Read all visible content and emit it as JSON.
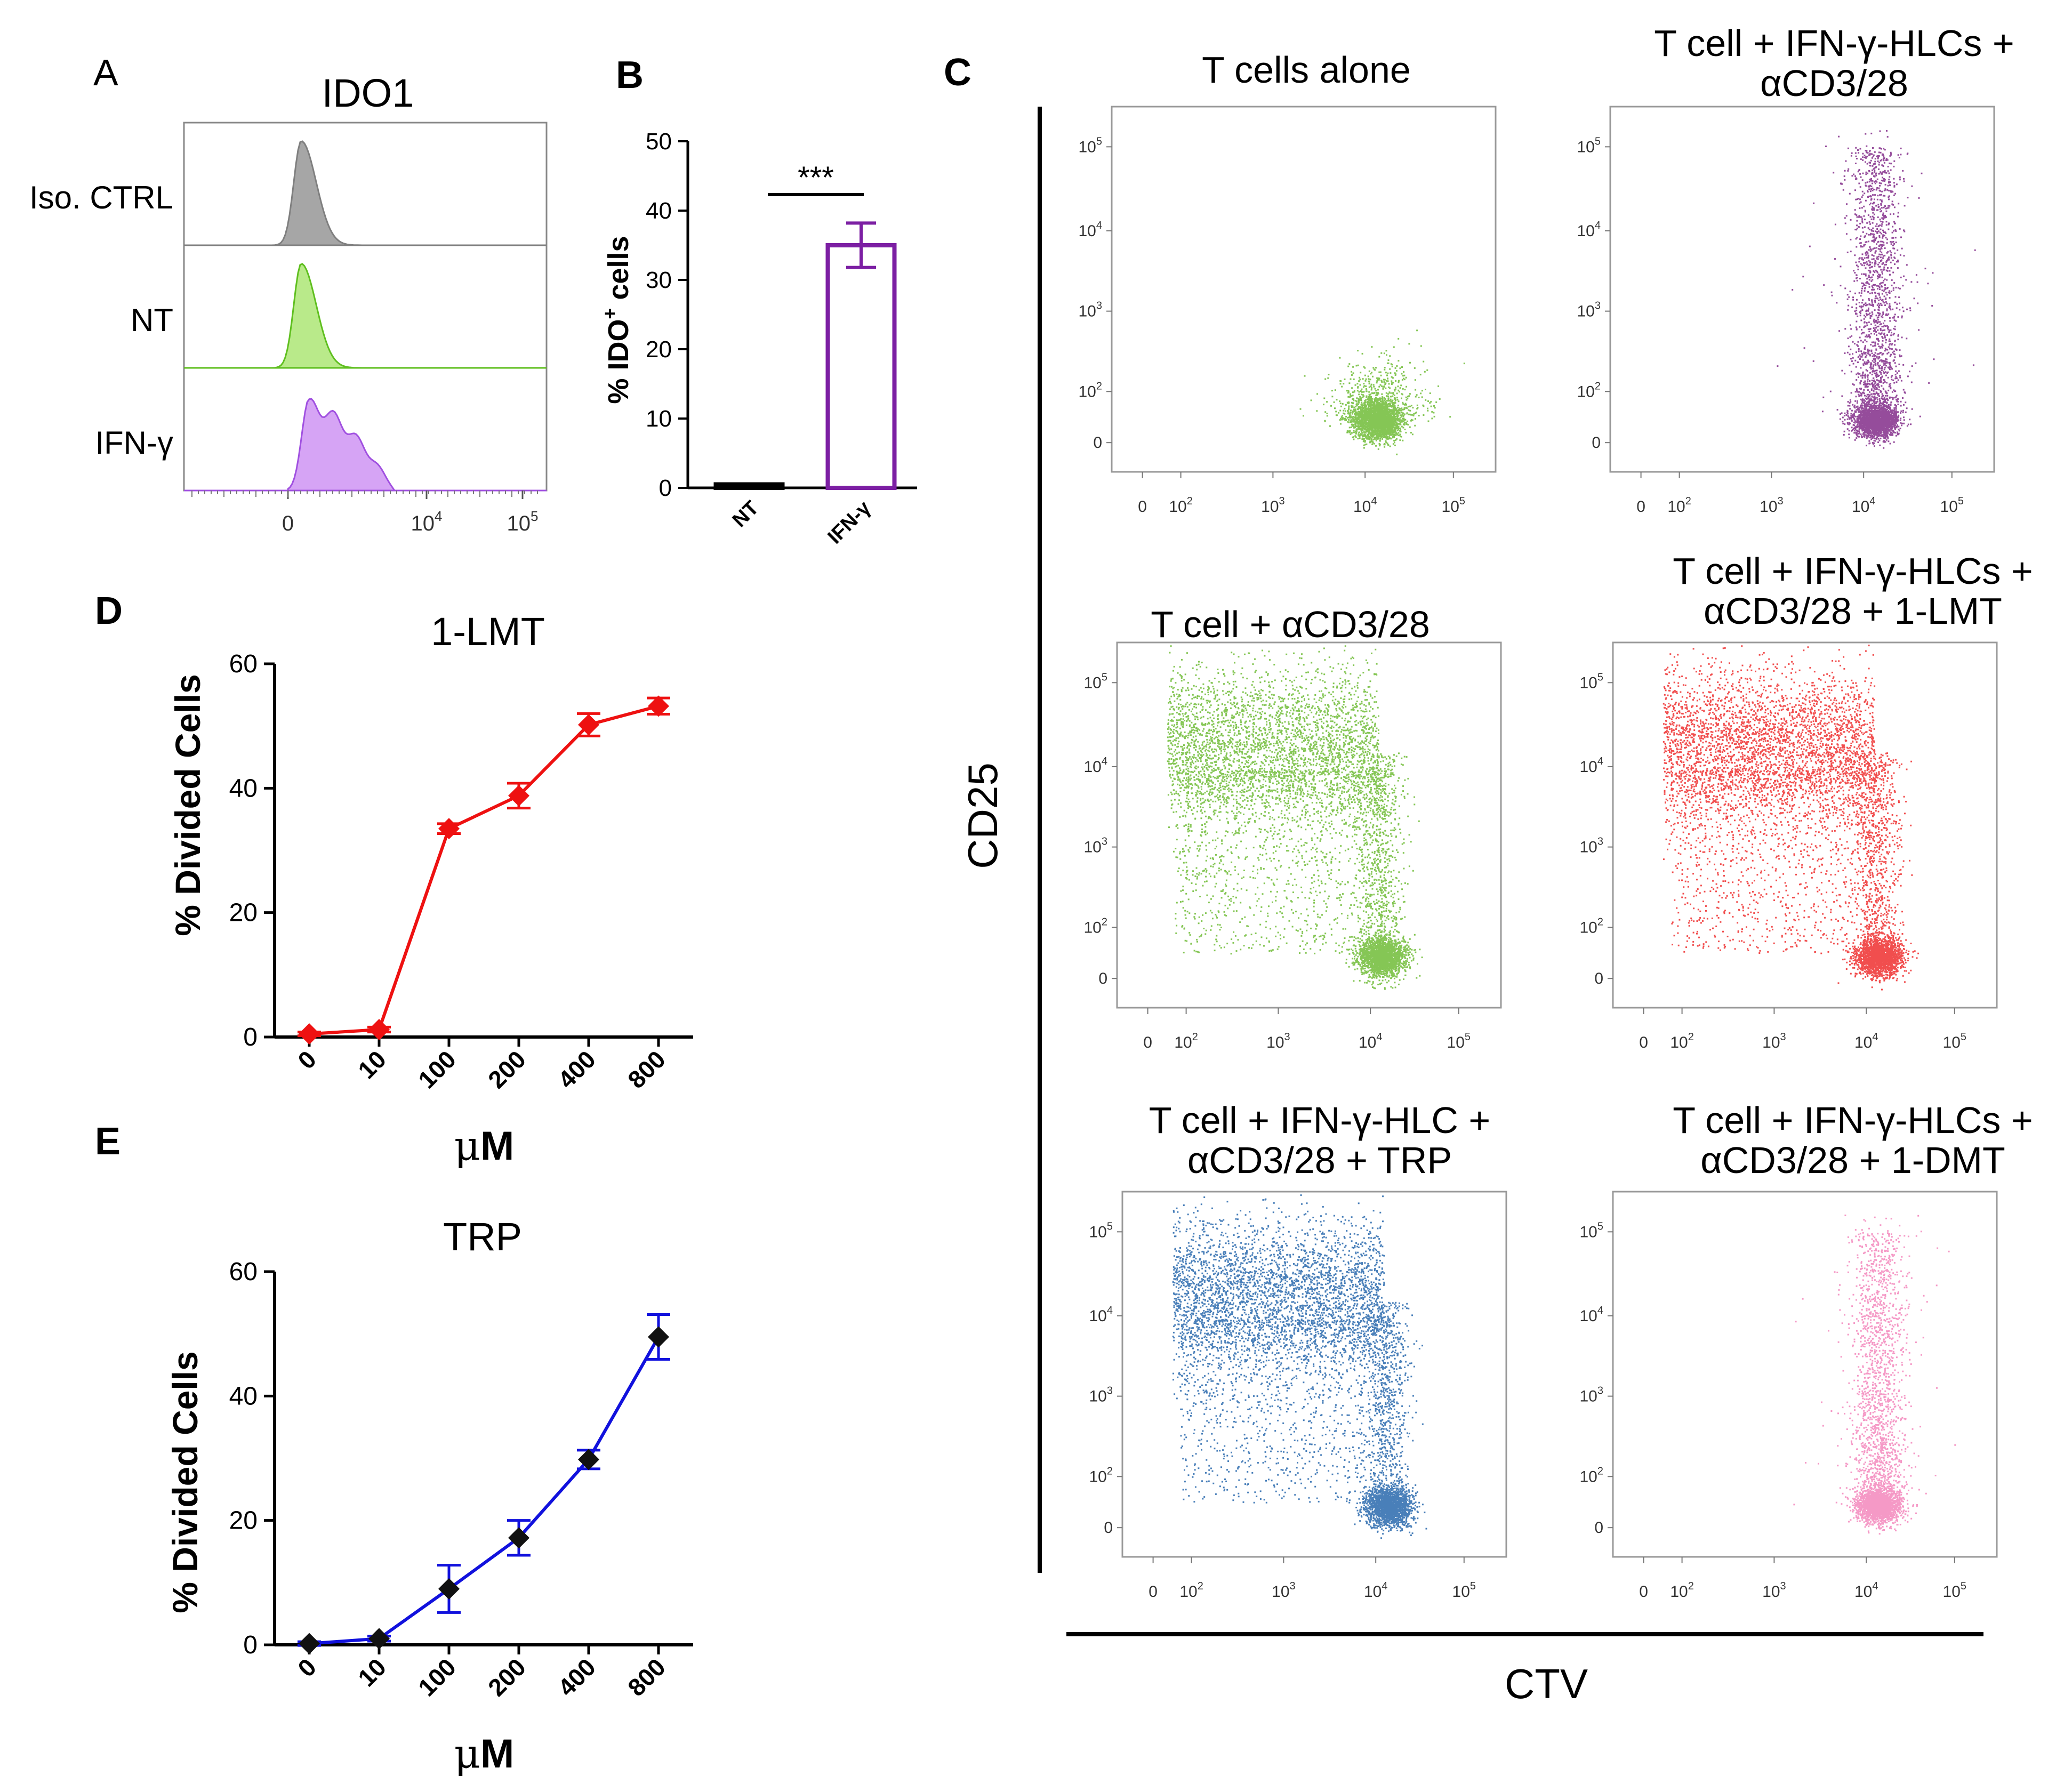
{
  "figure": {
    "panel_letters": {
      "A": "A",
      "B": "B",
      "C": "C",
      "D": "D",
      "E": "E"
    }
  },
  "chart_data": [
    {
      "id": "A",
      "type": "histogram-overlay",
      "title": "IDO1",
      "rows": [
        {
          "label": "Iso. CTRL",
          "color": "#a6a6a6",
          "stroke": "#7f7f7f",
          "shape": "narrow"
        },
        {
          "label": "NT",
          "color": "#b9ea8a",
          "stroke": "#5fbf1f",
          "shape": "narrow"
        },
        {
          "label": "IFN-γ",
          "color": "#d6a4f5",
          "stroke": "#a050e0",
          "shape": "broad"
        }
      ],
      "xticks": [
        {
          "label": "0",
          "sup": ""
        },
        {
          "label": "10",
          "sup": "4"
        },
        {
          "label": "10",
          "sup": "5"
        }
      ]
    },
    {
      "id": "B",
      "type": "bar",
      "categories": [
        "NT",
        "IFN-γ"
      ],
      "values": [
        0.5,
        35
      ],
      "errors": [
        0,
        3.2
      ],
      "ylabel_main": "% IDO",
      "ylabel_sup": "+",
      "ylabel_tail": " cells",
      "ylim": [
        0,
        50
      ],
      "yticks": [
        "0",
        "10",
        "20",
        "30",
        "40",
        "50"
      ],
      "significance": "***",
      "colors": [
        "#000000",
        "#7c1fa3"
      ]
    },
    {
      "id": "C",
      "type": "scatter-grid",
      "xlabel": "CTV",
      "ylabel": "CD25",
      "tick_values": [
        {
          "label": "0",
          "sup": ""
        },
        {
          "label": "10",
          "sup": "2"
        },
        {
          "label": "10",
          "sup": "3"
        },
        {
          "label": "10",
          "sup": "4"
        },
        {
          "label": "10",
          "sup": "5"
        }
      ],
      "plots": [
        {
          "title_lines": [
            "T cells alone"
          ],
          "color": "#66b82a",
          "pattern": "resting"
        },
        {
          "title_lines": [
            "T cell + IFN-γ-HLCs +",
            "αCD3/28"
          ],
          "color": "#7a1f82",
          "pattern": "column"
        },
        {
          "title_lines": [
            "T cell + αCD3/28"
          ],
          "color": "#66b82a",
          "pattern": "divided"
        },
        {
          "title_lines": [
            "T cell + IFN-γ-HLCs +",
            "αCD3/28 + 1-LMT"
          ],
          "color": "#ee2222",
          "pattern": "divided"
        },
        {
          "title_lines": [
            "T cell + IFN-γ-HLC +",
            "αCD3/28 + TRP"
          ],
          "color": "#1c5fa8",
          "pattern": "divided"
        },
        {
          "title_lines": [
            "T cell + IFN-γ-HLCs +",
            "αCD3/28 + 1-DMT"
          ],
          "color": "#f27fb8",
          "pattern": "column"
        }
      ]
    },
    {
      "id": "D",
      "type": "line",
      "title": "1-LMT",
      "categories": [
        "0",
        "10",
        "100",
        "200",
        "400",
        "800"
      ],
      "series": [
        {
          "values": [
            0.5,
            1.2,
            33.5,
            38.8,
            50.2,
            53.2
          ],
          "errors": [
            0.3,
            0.4,
            0.8,
            2.0,
            1.8,
            1.3
          ]
        }
      ],
      "ylabel": "% Divided Cells",
      "xlabel_mu": "μ",
      "xlabel_unit": "M",
      "ylim": [
        0,
        60
      ],
      "yticks": [
        "0",
        "20",
        "40",
        "60"
      ],
      "line_color": "#ee1111",
      "marker_color": "#ee1111"
    },
    {
      "id": "E",
      "type": "line",
      "title": "TRP",
      "categories": [
        "0",
        "10",
        "100",
        "200",
        "400",
        "800"
      ],
      "series": [
        {
          "values": [
            0.2,
            1.0,
            9.0,
            17.2,
            29.8,
            49.5
          ],
          "errors": [
            0.3,
            0.4,
            3.8,
            2.8,
            1.5,
            3.6
          ]
        }
      ],
      "ylabel": "% Divided Cells",
      "xlabel_mu": "μ",
      "xlabel_unit": "M",
      "ylim": [
        0,
        60
      ],
      "yticks": [
        "0",
        "20",
        "40",
        "60"
      ],
      "line_color": "#1111dd",
      "marker_color": "#111111"
    }
  ]
}
